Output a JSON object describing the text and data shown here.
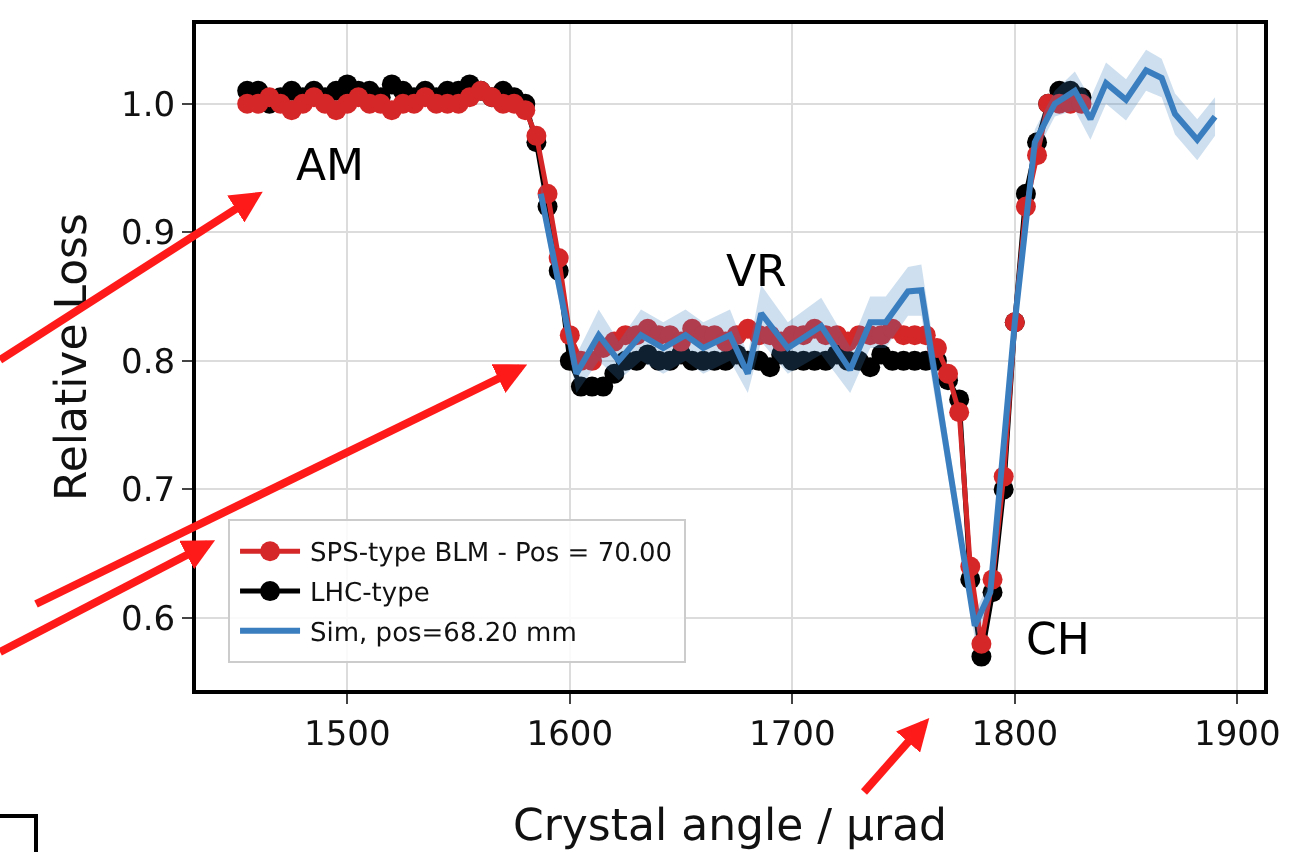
{
  "chart_data": {
    "type": "line",
    "xlabel": "Crystal angle / μrad",
    "ylabel": "Relative Loss",
    "xlim": [
      1432,
      1912
    ],
    "xticks": [
      1500,
      1600,
      1700,
      1800,
      1900
    ],
    "ylim": [
      0.544,
      1.062
    ],
    "yticks": [
      {
        "value": 0.6,
        "label": "0.6"
      },
      {
        "value": 0.7,
        "label": "0.7"
      },
      {
        "value": 0.8,
        "label": "0.8"
      },
      {
        "value": 0.9,
        "label": "0.9"
      },
      {
        "value": 1.0,
        "label": "1.0"
      }
    ],
    "grid": true,
    "legend": "bottom left",
    "line_style": "solid",
    "x": [
      1455,
      1460,
      1465,
      1470,
      1475,
      1480,
      1485,
      1490,
      1495,
      1500,
      1505,
      1510,
      1515,
      1520,
      1525,
      1530,
      1535,
      1540,
      1545,
      1550,
      1555,
      1560,
      1565,
      1570,
      1575,
      1580,
      1585,
      1590,
      1595,
      1600,
      1605,
      1610,
      1615,
      1620,
      1625,
      1630,
      1635,
      1640,
      1645,
      1650,
      1655,
      1660,
      1665,
      1670,
      1675,
      1680,
      1685,
      1690,
      1695,
      1700,
      1705,
      1710,
      1715,
      1720,
      1725,
      1730,
      1735,
      1740,
      1745,
      1750,
      1755,
      1760,
      1765,
      1770,
      1775,
      1780,
      1785,
      1790,
      1795,
      1800,
      1805,
      1810,
      1815,
      1820,
      1825,
      1830
    ],
    "series": [
      {
        "name": "SPS-type BLM - Pos = 70.00",
        "color": "#d62728",
        "marker": "circle",
        "values": [
          1.0,
          1.0,
          1.005,
          1.0,
          0.995,
          1.0,
          1.005,
          1.0,
          0.995,
          1.0,
          1.005,
          1.0,
          1.0,
          0.995,
          1.0,
          1.0,
          1.005,
          1.0,
          1.0,
          1.0,
          1.005,
          1.01,
          1.005,
          1.0,
          1.0,
          0.995,
          0.975,
          0.93,
          0.88,
          0.82,
          0.8,
          0.8,
          0.81,
          0.815,
          0.82,
          0.82,
          0.825,
          0.82,
          0.82,
          0.815,
          0.825,
          0.82,
          0.82,
          0.815,
          0.82,
          0.825,
          0.82,
          0.82,
          0.815,
          0.82,
          0.82,
          0.825,
          0.82,
          0.82,
          0.815,
          0.82,
          0.82,
          0.82,
          0.825,
          0.82,
          0.82,
          0.82,
          0.81,
          0.79,
          0.76,
          0.64,
          0.58,
          0.63,
          0.71,
          0.83,
          0.92,
          0.96,
          1.0,
          1.0,
          1.0,
          1.0
        ]
      },
      {
        "name": "LHC-type",
        "color": "#000000",
        "marker": "circle",
        "values": [
          1.01,
          1.01,
          1.0,
          1.005,
          1.01,
          1.005,
          1.01,
          1.005,
          1.01,
          1.015,
          1.01,
          1.01,
          1.005,
          1.015,
          1.01,
          1.005,
          1.01,
          1.005,
          1.01,
          1.01,
          1.015,
          1.01,
          1.005,
          1.01,
          1.005,
          1.0,
          0.97,
          0.92,
          0.87,
          0.8,
          0.78,
          0.78,
          0.78,
          0.79,
          0.8,
          0.8,
          0.805,
          0.8,
          0.8,
          0.805,
          0.8,
          0.8,
          0.8,
          0.8,
          0.805,
          0.8,
          0.8,
          0.795,
          0.805,
          0.8,
          0.8,
          0.8,
          0.8,
          0.805,
          0.8,
          0.8,
          0.795,
          0.805,
          0.8,
          0.8,
          0.8,
          0.8,
          0.8,
          0.785,
          0.77,
          0.63,
          0.57,
          0.62,
          0.7,
          0.83,
          0.93,
          0.97,
          1.0,
          1.01,
          1.01,
          1.005
        ]
      },
      {
        "name": "Sim, pos=68.20 mm",
        "color": "#3a7ebf",
        "marker": "none",
        "x": [
          1587,
          1603,
          1613,
          1622,
          1632,
          1642,
          1652,
          1660,
          1672,
          1680,
          1686,
          1698,
          1713,
          1726,
          1735,
          1742,
          1752,
          1758,
          1782,
          1789,
          1800,
          1809,
          1818,
          1827,
          1834,
          1841,
          1850,
          1859,
          1866,
          1872,
          1882,
          1890
        ],
        "values": [
          0.93,
          0.79,
          0.82,
          0.8,
          0.82,
          0.81,
          0.82,
          0.81,
          0.82,
          0.79,
          0.837,
          0.81,
          0.827,
          0.793,
          0.83,
          0.83,
          0.854,
          0.855,
          0.594,
          0.62,
          0.83,
          0.97,
          1.0,
          1.01,
          0.988,
          1.016,
          1.003,
          1.026,
          1.02,
          0.992,
          0.972,
          0.99
        ],
        "lower": [
          0.92,
          0.775,
          0.8,
          0.785,
          0.8,
          0.79,
          0.8,
          0.79,
          0.8,
          0.775,
          0.815,
          0.79,
          0.805,
          0.775,
          0.81,
          0.81,
          0.835,
          0.835,
          0.584,
          0.61,
          0.82,
          0.96,
          0.99,
          0.995,
          0.972,
          1.0,
          0.987,
          1.01,
          1.005,
          0.976,
          0.956,
          0.975
        ],
        "upper": [
          0.94,
          0.805,
          0.84,
          0.815,
          0.84,
          0.83,
          0.84,
          0.83,
          0.84,
          0.805,
          0.859,
          0.83,
          0.849,
          0.811,
          0.85,
          0.85,
          0.873,
          0.875,
          0.604,
          0.63,
          0.84,
          0.98,
          1.01,
          1.025,
          1.004,
          1.032,
          1.019,
          1.042,
          1.035,
          1.008,
          0.988,
          1.005
        ]
      }
    ],
    "annotations": [
      "AM",
      "VR",
      "CH"
    ]
  }
}
